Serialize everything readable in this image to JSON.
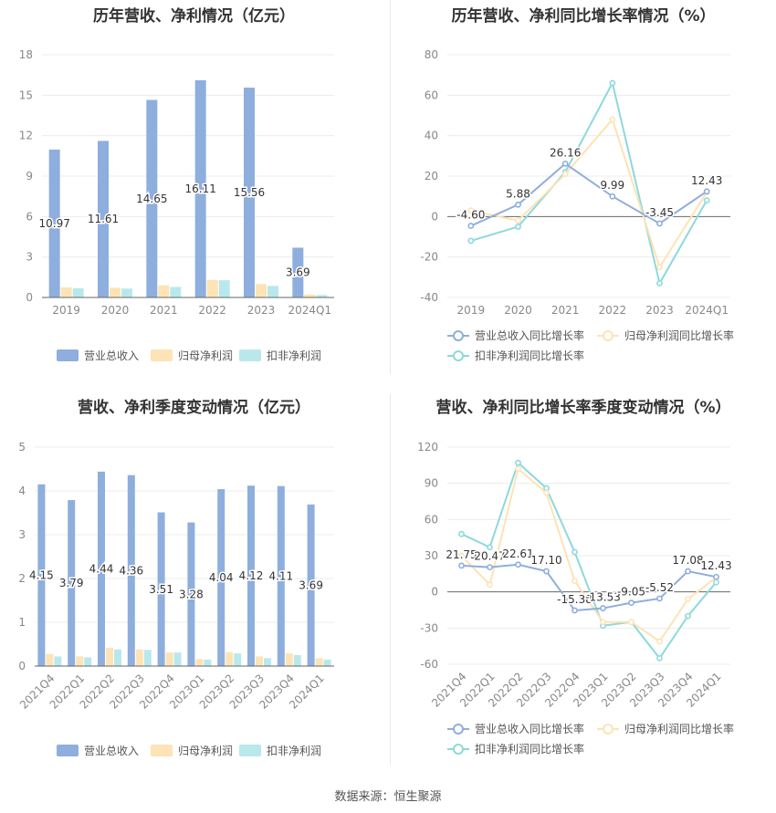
{
  "footer": "数据来源：恒生聚源",
  "chart_data": [
    {
      "id": "c1",
      "type": "bar",
      "title": "历年营收、净利情况（亿元）",
      "categories": [
        "2019",
        "2020",
        "2021",
        "2022",
        "2023",
        "2024Q1"
      ],
      "ylim": [
        0,
        18
      ],
      "yticks": [
        0,
        3,
        6,
        9,
        12,
        15,
        18
      ],
      "grid": true,
      "legend_position": "bottom",
      "series": [
        {
          "name": "营业总收入",
          "color": "#8eaedd",
          "values": [
            10.97,
            11.61,
            14.65,
            16.11,
            15.56,
            3.69
          ],
          "labels": [
            "10.97",
            "11.61",
            "14.65",
            "16.11",
            "15.56",
            "3.69"
          ]
        },
        {
          "name": "归母净利润",
          "color": "#fde3b5",
          "values": [
            0.75,
            0.72,
            0.9,
            1.3,
            1.0,
            0.22
          ]
        },
        {
          "name": "扣非净利润",
          "color": "#b9e8ec",
          "values": [
            0.68,
            0.66,
            0.78,
            1.28,
            0.86,
            0.18
          ]
        }
      ]
    },
    {
      "id": "c2",
      "type": "line",
      "title": "历年营收、净利同比增长率情况（%）",
      "categories": [
        "2019",
        "2020",
        "2021",
        "2022",
        "2023",
        "2024Q1"
      ],
      "ylim": [
        -40,
        80
      ],
      "yticks": [
        -40,
        -20,
        0,
        20,
        40,
        60,
        80
      ],
      "grid": true,
      "legend_position": "bottom",
      "series": [
        {
          "name": "营业总收入同比增长率",
          "color": "#8eaedd",
          "values": [
            -4.6,
            5.88,
            26.16,
            9.99,
            -3.45,
            12.43
          ],
          "labels": [
            "-4.60",
            "5.88",
            "26.16",
            "9.99",
            "-3.45",
            "12.43"
          ]
        },
        {
          "name": "归母净利润同比增长率",
          "color": "#fde3b5",
          "values": [
            3,
            -2,
            21,
            48,
            -25,
            12
          ]
        },
        {
          "name": "扣非净利润同比增长率",
          "color": "#8dd9dc",
          "values": [
            -12,
            -5,
            22,
            66,
            -33,
            8
          ]
        }
      ]
    },
    {
      "id": "c3",
      "type": "bar",
      "title": "营收、净利季度变动情况（亿元）",
      "categories": [
        "2021Q4",
        "2022Q1",
        "2022Q2",
        "2022Q3",
        "2022Q4",
        "2023Q1",
        "2023Q2",
        "2023Q3",
        "2023Q4",
        "2024Q1"
      ],
      "ylim": [
        0,
        5
      ],
      "yticks": [
        0,
        1,
        2,
        3,
        4,
        5
      ],
      "grid": true,
      "legend_position": "bottom",
      "series": [
        {
          "name": "营业总收入",
          "color": "#8eaedd",
          "values": [
            4.15,
            3.79,
            4.44,
            4.36,
            3.51,
            3.28,
            4.04,
            4.12,
            4.11,
            3.69
          ],
          "labels": [
            "4.15",
            "3.79",
            "4.44",
            "4.36",
            "3.51",
            "3.28",
            "4.04",
            "4.12",
            "4.11",
            "3.69"
          ]
        },
        {
          "name": "归母净利润",
          "color": "#fde3b5",
          "values": [
            0.28,
            0.22,
            0.42,
            0.38,
            0.31,
            0.16,
            0.32,
            0.22,
            0.29,
            0.18
          ]
        },
        {
          "name": "扣非净利润",
          "color": "#b9e8ec",
          "values": [
            0.22,
            0.2,
            0.38,
            0.37,
            0.31,
            0.15,
            0.29,
            0.18,
            0.25,
            0.15
          ]
        }
      ]
    },
    {
      "id": "c4",
      "type": "line",
      "title": "营收、净利同比增长率季度变动情况（%）",
      "categories": [
        "2021Q4",
        "2022Q1",
        "2022Q2",
        "2022Q3",
        "2022Q4",
        "2023Q1",
        "2023Q2",
        "2023Q3",
        "2023Q4",
        "2024Q1"
      ],
      "ylim": [
        -60,
        120
      ],
      "yticks": [
        -60,
        -30,
        0,
        30,
        60,
        90,
        120
      ],
      "grid": true,
      "legend_position": "bottom",
      "series": [
        {
          "name": "营业总收入同比增长率",
          "color": "#8eaedd",
          "values": [
            21.75,
            20.47,
            22.61,
            17.1,
            -15.38,
            -13.53,
            -9.05,
            -5.52,
            17.08,
            12.43
          ],
          "labels": [
            "21.75",
            "20.47",
            "22.61",
            "17.10",
            "-15.38",
            "-13.53",
            "-9.05",
            "-5.52",
            "17.08",
            "12.43"
          ]
        },
        {
          "name": "归母净利润同比增长率",
          "color": "#fde3b5",
          "values": [
            30,
            6,
            102,
            82,
            9,
            -25,
            -25,
            -41,
            -6,
            12
          ]
        },
        {
          "name": "扣非净利润同比增长率",
          "color": "#8dd9dc",
          "values": [
            48,
            37,
            107,
            86,
            33,
            -28,
            -25,
            -55,
            -20,
            8
          ]
        }
      ]
    }
  ]
}
